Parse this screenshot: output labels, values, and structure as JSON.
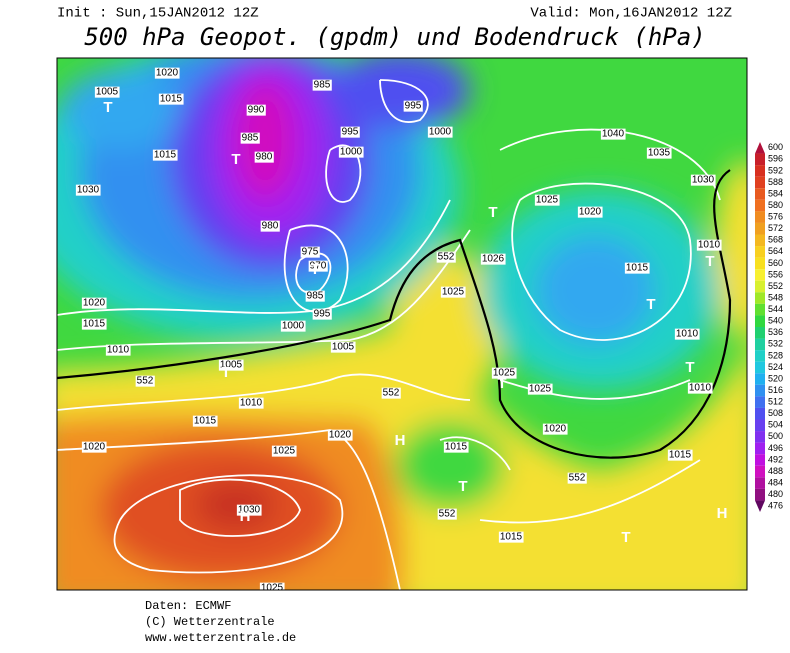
{
  "header": {
    "init": "Init : Sun,15JAN2012 12Z",
    "valid": "Valid: Mon,16JAN2012 12Z",
    "title": "500 hPa Geopot. (gpdm) und Bodendruck (hPa)"
  },
  "map": {
    "isobar_labels": [
      1020,
      1005,
      1015,
      1015,
      1030,
      990,
      985,
      980,
      995,
      1000,
      1000,
      995,
      985,
      980,
      975,
      970,
      985,
      995,
      1000,
      1020,
      1015,
      1010,
      1005,
      1005,
      1010,
      1015,
      1020,
      1025,
      1020,
      1030,
      1025,
      1015,
      1025,
      1026,
      1025,
      1020,
      1015,
      1040,
      1035,
      1030,
      1010,
      1010,
      1010,
      1025,
      1025,
      1020,
      1015,
      1015,
      552,
      552,
      552,
      552,
      552
    ],
    "pressure_centers": [
      "T",
      "T",
      "T",
      "T",
      "H",
      "T",
      "H",
      "T",
      "H",
      "T",
      "T",
      "T",
      "T",
      "T"
    ]
  },
  "legend": {
    "values": [
      600,
      596,
      592,
      588,
      584,
      580,
      576,
      572,
      568,
      564,
      560,
      556,
      552,
      548,
      544,
      540,
      536,
      532,
      528,
      524,
      520,
      516,
      512,
      508,
      504,
      500,
      496,
      492,
      488,
      484,
      480,
      476
    ],
    "colors": [
      "#b0103a",
      "#c8202a",
      "#d83020",
      "#e04020",
      "#e85a20",
      "#f07020",
      "#f08c20",
      "#f0a020",
      "#f4b820",
      "#f8d020",
      "#f8e020",
      "#f8f030",
      "#d8f030",
      "#a0e828",
      "#60e030",
      "#30d840",
      "#20d070",
      "#20d0a0",
      "#20d0c8",
      "#20c8e0",
      "#20b0f0",
      "#3090f0",
      "#4070f0",
      "#5050f0",
      "#6840f0",
      "#8030f0",
      "#a020f0",
      "#c010e0",
      "#d010c0",
      "#b010a0",
      "#901080",
      "#600860"
    ]
  },
  "footer": {
    "source": "Daten: ECMWF",
    "copyright": "(C) Wetterzentrale",
    "url": "www.wetterzentrale.de"
  }
}
